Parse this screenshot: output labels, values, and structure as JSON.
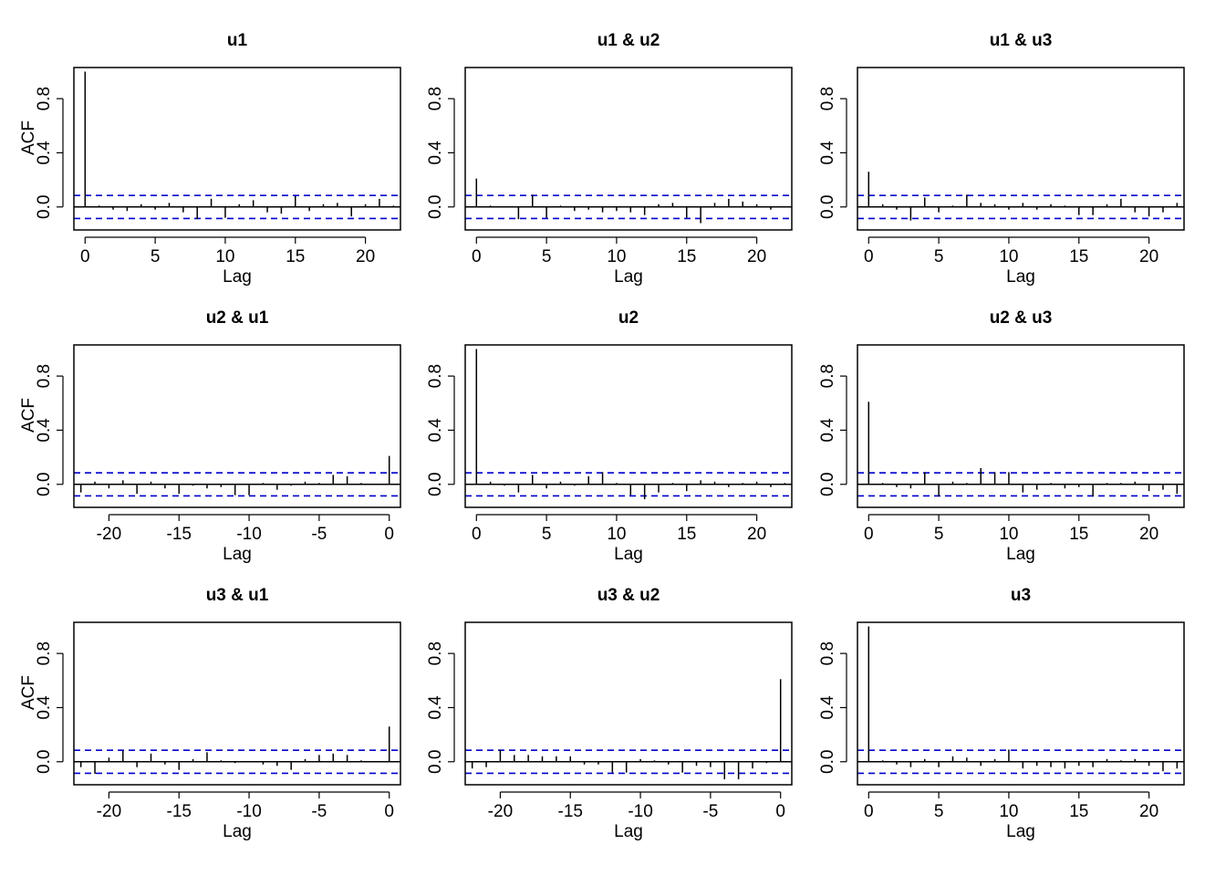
{
  "figure": {
    "ylabel": "ACF",
    "xlabel": "Lag",
    "colors": {
      "stem": "#000000",
      "ci": "#0000cc",
      "frame": "#000000"
    },
    "ci_level": 0.085
  },
  "chart_data": [
    {
      "type": "bar",
      "subtype": "acf-stem",
      "title": "u1",
      "xlabel": "Lag",
      "ylabel": "ACF",
      "xlim": [
        -0.8,
        22.5
      ],
      "ylim": [
        -0.17,
        1.03
      ],
      "xticks": [
        0,
        5,
        10,
        15,
        20
      ],
      "yticks": [
        0.0,
        0.4,
        0.8
      ],
      "ci": 0.085,
      "lags": [
        0,
        1,
        2,
        3,
        4,
        5,
        6,
        7,
        8,
        9,
        10,
        11,
        12,
        13,
        14,
        15,
        16,
        17,
        18,
        19,
        20,
        21,
        22
      ],
      "values": [
        1.0,
        0.01,
        -0.02,
        -0.03,
        0.02,
        -0.02,
        0.03,
        -0.04,
        -0.09,
        0.06,
        -0.08,
        0.02,
        0.05,
        -0.04,
        -0.05,
        0.08,
        -0.03,
        0.02,
        0.03,
        -0.07,
        0.02,
        0.06,
        0.01
      ]
    },
    {
      "type": "bar",
      "subtype": "acf-stem",
      "title": "u1 & u2",
      "xlabel": "Lag",
      "ylabel": "",
      "xlim": [
        -0.8,
        22.5
      ],
      "ylim": [
        -0.17,
        1.03
      ],
      "xticks": [
        0,
        5,
        10,
        15,
        20
      ],
      "yticks": [
        0.0,
        0.4,
        0.8
      ],
      "ci": 0.085,
      "lags": [
        0,
        1,
        2,
        3,
        4,
        5,
        6,
        7,
        8,
        9,
        10,
        11,
        12,
        13,
        14,
        15,
        16,
        17,
        18,
        19,
        20,
        21,
        22
      ],
      "values": [
        0.21,
        0.01,
        0.0,
        -0.09,
        0.09,
        -0.08,
        0.01,
        -0.03,
        -0.02,
        -0.04,
        -0.03,
        -0.04,
        -0.06,
        0.02,
        0.03,
        -0.08,
        -0.12,
        0.03,
        0.06,
        0.04,
        0.02,
        -0.02,
        0.0
      ]
    },
    {
      "type": "bar",
      "subtype": "acf-stem",
      "title": "u1 & u3",
      "xlabel": "Lag",
      "ylabel": "",
      "xlim": [
        -0.8,
        22.5
      ],
      "ylim": [
        -0.17,
        1.03
      ],
      "xticks": [
        0,
        5,
        10,
        15,
        20
      ],
      "yticks": [
        0.0,
        0.4,
        0.8
      ],
      "ci": 0.085,
      "lags": [
        0,
        1,
        2,
        3,
        4,
        5,
        6,
        7,
        8,
        9,
        10,
        11,
        12,
        13,
        14,
        15,
        16,
        17,
        18,
        19,
        20,
        21,
        22
      ],
      "values": [
        0.26,
        0.02,
        -0.02,
        -0.1,
        0.07,
        -0.04,
        0.01,
        0.09,
        0.03,
        0.02,
        -0.02,
        0.03,
        -0.02,
        0.02,
        0.01,
        -0.06,
        -0.06,
        0.02,
        0.06,
        -0.04,
        -0.07,
        -0.04,
        0.03
      ]
    },
    {
      "type": "bar",
      "subtype": "acf-stem",
      "title": "u2 & u1",
      "xlabel": "Lag",
      "ylabel": "ACF",
      "xlim": [
        -22.5,
        0.8
      ],
      "ylim": [
        -0.17,
        1.03
      ],
      "xticks": [
        -20,
        -15,
        -10,
        -5,
        0
      ],
      "yticks": [
        0.0,
        0.4,
        0.8
      ],
      "ci": 0.085,
      "lags": [
        -22,
        -21,
        -20,
        -19,
        -18,
        -17,
        -16,
        -15,
        -14,
        -13,
        -12,
        -11,
        -10,
        -9,
        -8,
        -7,
        -6,
        -5,
        -4,
        -3,
        -2,
        -1,
        0
      ],
      "values": [
        -0.06,
        0.02,
        -0.03,
        0.03,
        -0.07,
        0.02,
        -0.03,
        -0.07,
        -0.01,
        -0.03,
        -0.02,
        -0.08,
        -0.08,
        0.01,
        -0.04,
        -0.01,
        0.02,
        0.01,
        0.07,
        0.06,
        0.01,
        0.0,
        0.21
      ]
    },
    {
      "type": "bar",
      "subtype": "acf-stem",
      "title": "u2",
      "xlabel": "Lag",
      "ylabel": "",
      "xlim": [
        -0.8,
        22.5
      ],
      "ylim": [
        -0.17,
        1.03
      ],
      "xticks": [
        0,
        5,
        10,
        15,
        20
      ],
      "yticks": [
        0.0,
        0.4,
        0.8
      ],
      "ci": 0.085,
      "lags": [
        0,
        1,
        2,
        3,
        4,
        5,
        6,
        7,
        8,
        9,
        10,
        11,
        12,
        13,
        14,
        15,
        16,
        17,
        18,
        19,
        20,
        21,
        22
      ],
      "values": [
        1.0,
        0.02,
        -0.01,
        -0.06,
        0.07,
        -0.03,
        0.02,
        -0.01,
        0.06,
        0.09,
        0.01,
        -0.08,
        -0.11,
        -0.06,
        0.01,
        -0.05,
        0.03,
        0.02,
        -0.02,
        0.01,
        0.02,
        -0.02,
        0.01
      ]
    },
    {
      "type": "bar",
      "subtype": "acf-stem",
      "title": "u2 & u3",
      "xlabel": "Lag",
      "ylabel": "",
      "xlim": [
        -0.8,
        22.5
      ],
      "ylim": [
        -0.17,
        1.03
      ],
      "xticks": [
        0,
        5,
        10,
        15,
        20
      ],
      "yticks": [
        0.0,
        0.4,
        0.8
      ],
      "ci": 0.085,
      "lags": [
        0,
        1,
        2,
        3,
        4,
        5,
        6,
        7,
        8,
        9,
        10,
        11,
        12,
        13,
        14,
        15,
        16,
        17,
        18,
        19,
        20,
        21,
        22
      ],
      "values": [
        0.61,
        0.01,
        -0.02,
        -0.03,
        0.09,
        -0.09,
        0.02,
        0.01,
        0.12,
        0.09,
        0.09,
        -0.06,
        -0.04,
        0.01,
        -0.03,
        -0.02,
        -0.09,
        0.01,
        0.01,
        0.02,
        -0.05,
        -0.04,
        -0.07
      ]
    },
    {
      "type": "bar",
      "subtype": "acf-stem",
      "title": "u3 & u1",
      "xlabel": "Lag",
      "ylabel": "ACF",
      "xlim": [
        -22.5,
        0.8
      ],
      "ylim": [
        -0.17,
        1.03
      ],
      "xticks": [
        -20,
        -15,
        -10,
        -5,
        0
      ],
      "yticks": [
        0.0,
        0.4,
        0.8
      ],
      "ci": 0.085,
      "lags": [
        -22,
        -21,
        -20,
        -19,
        -18,
        -17,
        -16,
        -15,
        -14,
        -13,
        -12,
        -11,
        -10,
        -9,
        -8,
        -7,
        -6,
        -5,
        -4,
        -3,
        -2,
        -1,
        0
      ],
      "values": [
        -0.04,
        -0.09,
        0.03,
        0.08,
        -0.04,
        0.06,
        -0.02,
        -0.06,
        0.02,
        0.07,
        0.01,
        -0.01,
        0.0,
        -0.02,
        -0.03,
        -0.06,
        0.02,
        0.05,
        0.06,
        0.05,
        0.01,
        0.0,
        0.26
      ]
    },
    {
      "type": "bar",
      "subtype": "acf-stem",
      "title": "u3 & u2",
      "xlabel": "Lag",
      "ylabel": "",
      "xlim": [
        -22.5,
        0.8
      ],
      "ylim": [
        -0.17,
        1.03
      ],
      "xticks": [
        -20,
        -15,
        -10,
        -5,
        0
      ],
      "yticks": [
        0.0,
        0.4,
        0.8
      ],
      "ci": 0.085,
      "lags": [
        -22,
        -21,
        -20,
        -19,
        -18,
        -17,
        -16,
        -15,
        -14,
        -13,
        -12,
        -11,
        -10,
        -9,
        -8,
        -7,
        -6,
        -5,
        -4,
        -3,
        -2,
        -1,
        0
      ],
      "values": [
        -0.05,
        -0.04,
        0.09,
        0.05,
        0.05,
        0.04,
        0.04,
        0.04,
        -0.02,
        -0.02,
        -0.08,
        -0.08,
        0.02,
        0.01,
        -0.02,
        -0.08,
        -0.03,
        -0.04,
        -0.13,
        -0.13,
        -0.05,
        -0.01,
        0.61
      ]
    },
    {
      "type": "bar",
      "subtype": "acf-stem",
      "title": "u3",
      "xlabel": "Lag",
      "ylabel": "",
      "xlim": [
        -0.8,
        22.5
      ],
      "ylim": [
        -0.17,
        1.03
      ],
      "xticks": [
        0,
        5,
        10,
        15,
        20
      ],
      "yticks": [
        0.0,
        0.4,
        0.8
      ],
      "ci": 0.085,
      "lags": [
        0,
        1,
        2,
        3,
        4,
        5,
        6,
        7,
        8,
        9,
        10,
        11,
        12,
        13,
        14,
        15,
        16,
        17,
        18,
        19,
        20,
        21,
        22
      ],
      "values": [
        1.0,
        0.01,
        -0.02,
        -0.04,
        0.02,
        -0.04,
        0.04,
        0.03,
        -0.03,
        0.02,
        0.09,
        -0.05,
        -0.03,
        -0.04,
        -0.05,
        -0.03,
        -0.04,
        0.02,
        0.01,
        0.02,
        -0.03,
        -0.07,
        -0.05
      ]
    }
  ]
}
